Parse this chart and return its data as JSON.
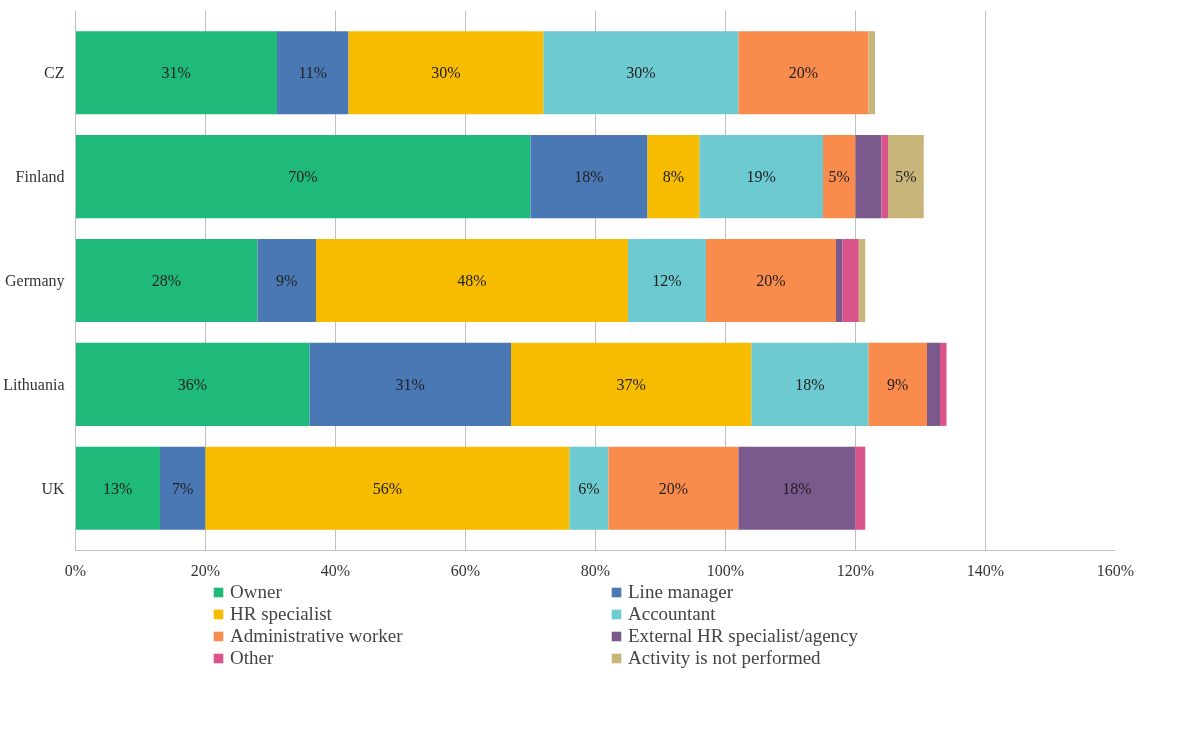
{
  "chart_data": {
    "type": "bar",
    "orientation": "horizontal",
    "stacked": true,
    "categories": [
      "CZ",
      "Finland",
      "Germany",
      "Lithuania",
      "UK"
    ],
    "series": [
      {
        "name": "Owner",
        "color": "#1fba7a",
        "values": [
          31,
          70,
          28,
          36,
          13
        ],
        "value_labels": [
          "31%",
          "70%",
          "28%",
          "36%",
          "13%"
        ]
      },
      {
        "name": "Line manager",
        "color": "#4a78b5",
        "values": [
          11,
          18,
          9,
          31,
          7
        ],
        "value_labels": [
          "11%",
          "18%",
          "9%",
          "31%",
          "7%"
        ]
      },
      {
        "name": "HR specialist",
        "color": "#f7bc00",
        "values": [
          30,
          8,
          48,
          37,
          56
        ],
        "value_labels": [
          "30%",
          "8%",
          "48%",
          "37%",
          "56%"
        ]
      },
      {
        "name": "Accountant",
        "color": "#6ccad0",
        "values": [
          30,
          19,
          12,
          18,
          6
        ],
        "value_labels": [
          "30%",
          "19%",
          "12%",
          "18%",
          "6%"
        ]
      },
      {
        "name": "Administrative worker",
        "color": "#f98b4d",
        "values": [
          20,
          5,
          20,
          9,
          20
        ],
        "value_labels": [
          "20%",
          "5%",
          "20%",
          "9%",
          "20%"
        ]
      },
      {
        "name": "External HR specialist/agency",
        "color": "#7a5a8c",
        "values": [
          0,
          4,
          1,
          2,
          18
        ],
        "value_labels": [
          null,
          null,
          null,
          null,
          "18%"
        ]
      },
      {
        "name": "Other",
        "color": "#d9548a",
        "values": [
          0,
          1,
          2.5,
          1,
          1.5
        ],
        "value_labels": [
          null,
          null,
          null,
          null,
          null
        ]
      },
      {
        "name": "Activity is not performed",
        "color": "#c8b57a",
        "values": [
          1,
          5.5,
          1,
          0,
          0
        ],
        "value_labels": [
          null,
          "5%",
          null,
          null,
          null
        ]
      }
    ],
    "xlim": [
      0,
      160
    ],
    "xticks": [
      {
        "value": 0,
        "label": "0%"
      },
      {
        "value": 20,
        "label": "20%"
      },
      {
        "value": 40,
        "label": "40%"
      },
      {
        "value": 60,
        "label": "60%"
      },
      {
        "value": 80,
        "label": "80%"
      },
      {
        "value": 100,
        "label": "100%"
      },
      {
        "value": 120,
        "label": "120%"
      },
      {
        "value": 140,
        "label": "140%"
      },
      {
        "value": 160,
        "label": "160%"
      }
    ],
    "grid": "x",
    "legend": "bottom"
  }
}
